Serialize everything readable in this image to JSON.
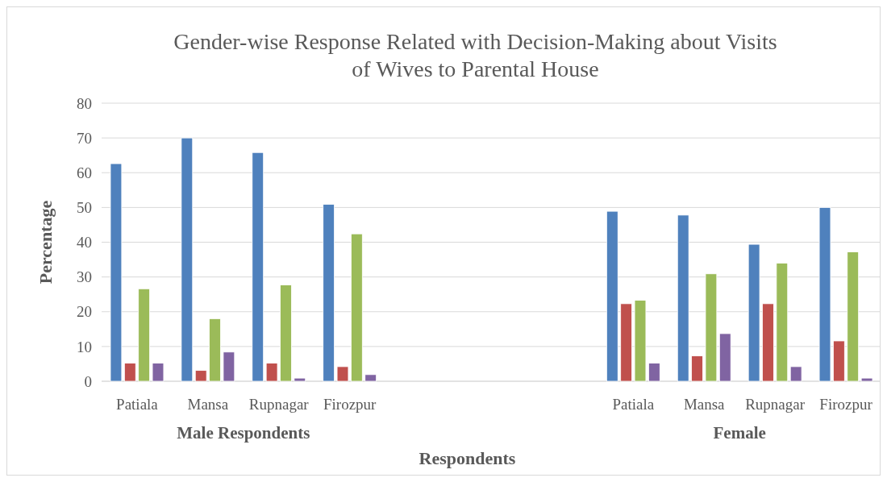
{
  "chart_data": {
    "type": "bar",
    "title": "Gender-wise Response Related with Decision-Making about Visits of Wives to Parental House",
    "xlabel": "Respondents",
    "ylabel": "Percentage",
    "categories": [
      "Patiala",
      "Mansa",
      "Rupnagar",
      "Firozpur",
      null,
      null,
      null,
      "Patiala",
      "Mansa",
      "Rupnagar",
      "Firozpur"
    ],
    "series": [
      {
        "color": "#4f81bd",
        "values": [
          62.6,
          70.0,
          65.8,
          50.9,
          null,
          null,
          null,
          48.9,
          47.8,
          39.4,
          50.0
        ]
      },
      {
        "color": "#c0504d",
        "values": [
          5.2,
          3.1,
          5.2,
          4.2,
          null,
          null,
          null,
          22.3,
          7.3,
          22.3,
          11.6
        ]
      },
      {
        "color": "#9bbb59",
        "values": [
          26.6,
          18.0,
          27.7,
          42.4,
          null,
          null,
          null,
          23.3,
          30.9,
          34.0,
          37.2
        ]
      },
      {
        "color": "#8064a2",
        "values": [
          5.2,
          8.4,
          0.9,
          1.9,
          null,
          null,
          null,
          5.2,
          13.7,
          4.2,
          0.9
        ]
      }
    ],
    "annotations": [
      "Male Respondents",
      "Female"
    ],
    "ylim": [
      0,
      80
    ],
    "yticks": [
      0,
      10,
      20,
      30,
      40,
      50,
      60,
      70,
      80
    ],
    "grid": "y"
  }
}
